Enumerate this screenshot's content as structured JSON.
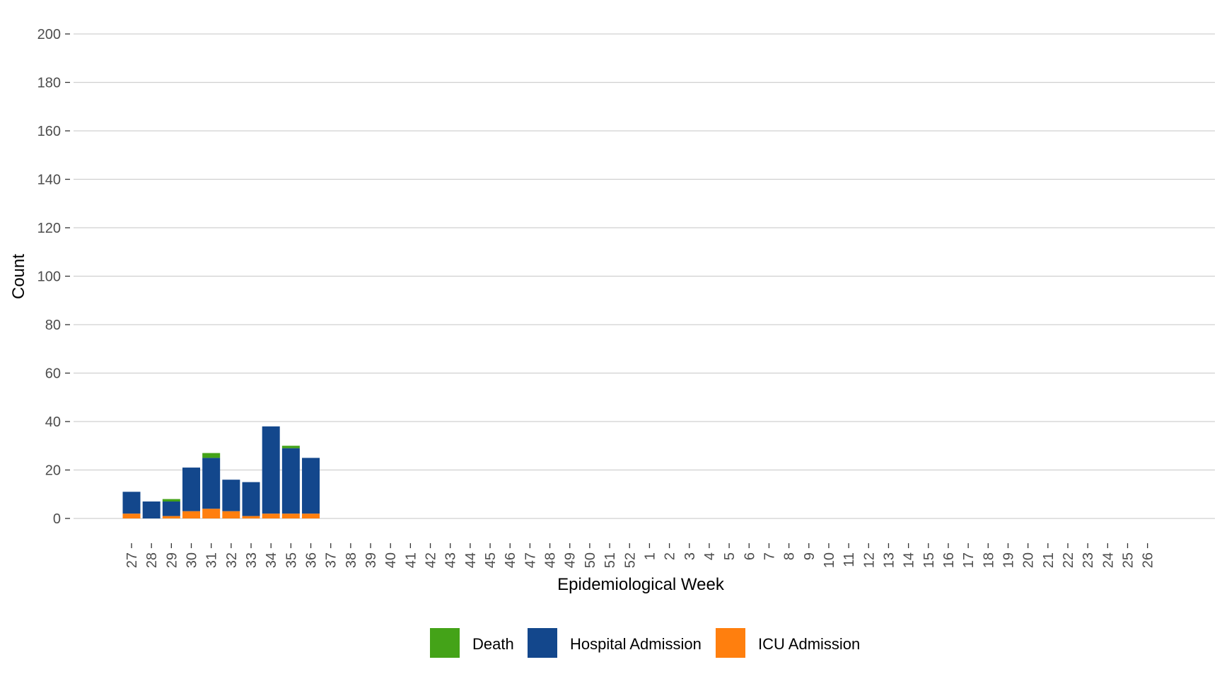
{
  "chart_data": {
    "type": "bar",
    "stacked": true,
    "xlabel": "Epidemiological Week",
    "ylabel": "Count",
    "ylim": [
      0,
      200
    ],
    "yticks": [
      "0",
      "20",
      "40",
      "60",
      "80",
      "100",
      "120",
      "140",
      "160",
      "180",
      "200"
    ],
    "grid": true,
    "legend_position": "bottom",
    "categories": [
      "27",
      "28",
      "29",
      "30",
      "31",
      "32",
      "33",
      "34",
      "35",
      "36",
      "37",
      "38",
      "39",
      "40",
      "41",
      "42",
      "43",
      "44",
      "45",
      "46",
      "47",
      "48",
      "49",
      "50",
      "51",
      "52",
      "1",
      "2",
      "3",
      "4",
      "5",
      "6",
      "7",
      "8",
      "9",
      "10",
      "11",
      "12",
      "13",
      "14",
      "15",
      "16",
      "17",
      "18",
      "19",
      "20",
      "21",
      "22",
      "23",
      "24",
      "25",
      "26"
    ],
    "series": [
      {
        "name": "ICU Admission",
        "color": "#ff7f0e",
        "values": [
          2,
          0,
          1,
          3,
          4,
          3,
          1,
          2,
          2,
          2,
          0,
          0,
          0,
          0,
          0,
          0,
          0,
          0,
          0,
          0,
          0,
          0,
          0,
          0,
          0,
          0,
          0,
          0,
          0,
          0,
          0,
          0,
          0,
          0,
          0,
          0,
          0,
          0,
          0,
          0,
          0,
          0,
          0,
          0,
          0,
          0,
          0,
          0,
          0,
          0,
          0,
          0
        ]
      },
      {
        "name": "Hospital Admission",
        "color": "#13478c",
        "values": [
          9,
          7,
          6,
          18,
          21,
          13,
          14,
          36,
          27,
          23,
          0,
          0,
          0,
          0,
          0,
          0,
          0,
          0,
          0,
          0,
          0,
          0,
          0,
          0,
          0,
          0,
          0,
          0,
          0,
          0,
          0,
          0,
          0,
          0,
          0,
          0,
          0,
          0,
          0,
          0,
          0,
          0,
          0,
          0,
          0,
          0,
          0,
          0,
          0,
          0,
          0,
          0
        ]
      },
      {
        "name": "Death",
        "color": "#44a318",
        "values": [
          0,
          0,
          1,
          0,
          2,
          0,
          0,
          0,
          1,
          0,
          0,
          0,
          0,
          0,
          0,
          0,
          0,
          0,
          0,
          0,
          0,
          0,
          0,
          0,
          0,
          0,
          0,
          0,
          0,
          0,
          0,
          0,
          0,
          0,
          0,
          0,
          0,
          0,
          0,
          0,
          0,
          0,
          0,
          0,
          0,
          0,
          0,
          0,
          0,
          0,
          0,
          0
        ]
      }
    ],
    "legend": [
      {
        "label": "Death",
        "color": "#44a318"
      },
      {
        "label": "Hospital Admission",
        "color": "#13478c"
      },
      {
        "label": "ICU Admission",
        "color": "#ff7f0e"
      }
    ]
  }
}
